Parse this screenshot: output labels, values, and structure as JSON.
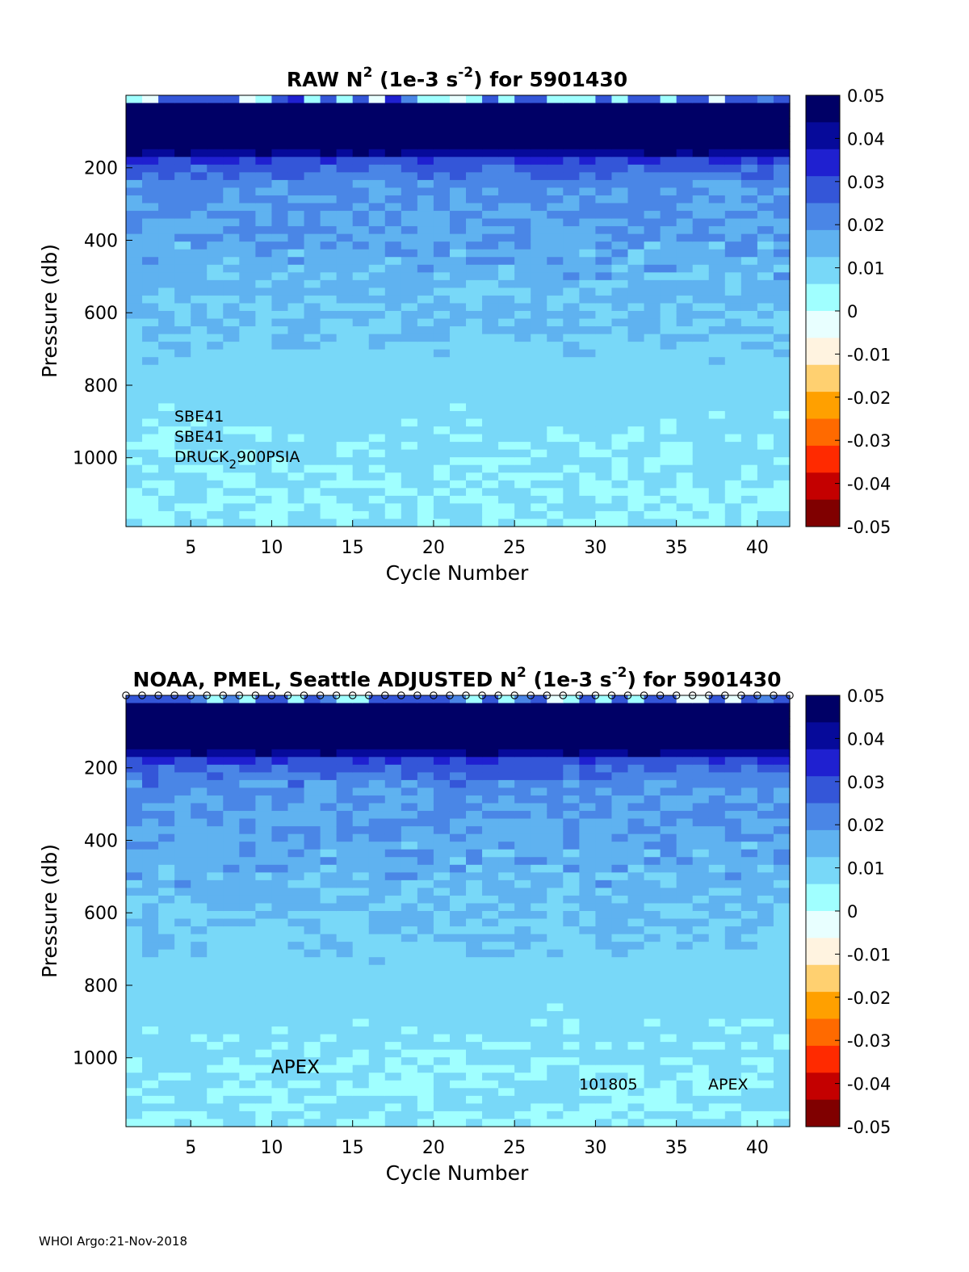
{
  "footer": "WHOI Argo:21-Nov-2018",
  "colors": {
    "colormap": [
      "#800000",
      "#c40000",
      "#ff2a00",
      "#ff6a00",
      "#ffa000",
      "#ffd070",
      "#fff3e0",
      "#e8ffff",
      "#a0ffff",
      "#78d8f8",
      "#5fb2f0",
      "#4a86e6",
      "#3456d8",
      "#1f20d0",
      "#060a9a",
      "#000066"
    ],
    "frame": "#000000"
  },
  "chart_data": [
    {
      "type": "heatmap",
      "title_main": "RAW N",
      "title_sup": "2",
      "title_mid": " (1e-3 s",
      "title_sup2": "-2",
      "title_end": ") for 5901430",
      "xlabel": "Cycle Number",
      "ylabel": "Pressure (db)",
      "xlim": [
        1,
        42
      ],
      "ylim": [
        1190,
        0
      ],
      "xticks": [
        "5",
        "10",
        "15",
        "20",
        "25",
        "30",
        "35",
        "40"
      ],
      "yticks": [
        "200",
        "400",
        "600",
        "800",
        "1000"
      ],
      "clim": [
        -0.05,
        0.05
      ],
      "colorbar_ticks": [
        "0.05",
        "0.04",
        "0.03",
        "0.02",
        "0.01",
        "0",
        "-0.01",
        "-0.02",
        "-0.03",
        "-0.04",
        "-0.05"
      ],
      "annotations": [
        "SBE41",
        "SBE41",
        "DRUCK",
        "2",
        "900PSIA"
      ],
      "n_cycles": 41,
      "n_levels": 56,
      "value_profile": {
        "depth_db": [
          0,
          20,
          60,
          100,
          150,
          180,
          250,
          400,
          600,
          800,
          1000,
          1190
        ],
        "n2": [
          0.003,
          0.05,
          0.05,
          0.05,
          0.048,
          0.03,
          0.02,
          0.017,
          0.013,
          0.009,
          0.007,
          0.006
        ]
      },
      "surface_markers": false
    },
    {
      "type": "heatmap",
      "title_main": "NOAA, PMEL, Seattle  ADJUSTED N",
      "title_sup": "2",
      "title_mid": " (1e-3 s",
      "title_sup2": "-2",
      "title_end": ") for 5901430",
      "xlabel": "Cycle Number",
      "ylabel": "Pressure (db)",
      "xlim": [
        1,
        42
      ],
      "ylim": [
        1190,
        0
      ],
      "xticks": [
        "5",
        "10",
        "15",
        "20",
        "25",
        "30",
        "35",
        "40"
      ],
      "yticks": [
        "200",
        "400",
        "600",
        "800",
        "1000"
      ],
      "clim": [
        -0.05,
        0.05
      ],
      "colorbar_ticks": [
        "0.05",
        "0.04",
        "0.03",
        "0.02",
        "0.01",
        "0",
        "-0.01",
        "-0.02",
        "-0.03",
        "-0.04",
        "-0.05"
      ],
      "annotations": [
        "APEX",
        "101805",
        "APEX"
      ],
      "n_cycles": 41,
      "n_levels": 56,
      "value_profile": {
        "depth_db": [
          0,
          20,
          60,
          100,
          150,
          180,
          250,
          400,
          600,
          800,
          1000,
          1190
        ],
        "n2": [
          0.003,
          0.05,
          0.05,
          0.05,
          0.048,
          0.03,
          0.02,
          0.017,
          0.013,
          0.009,
          0.007,
          0.006
        ]
      },
      "surface_markers": true
    }
  ]
}
